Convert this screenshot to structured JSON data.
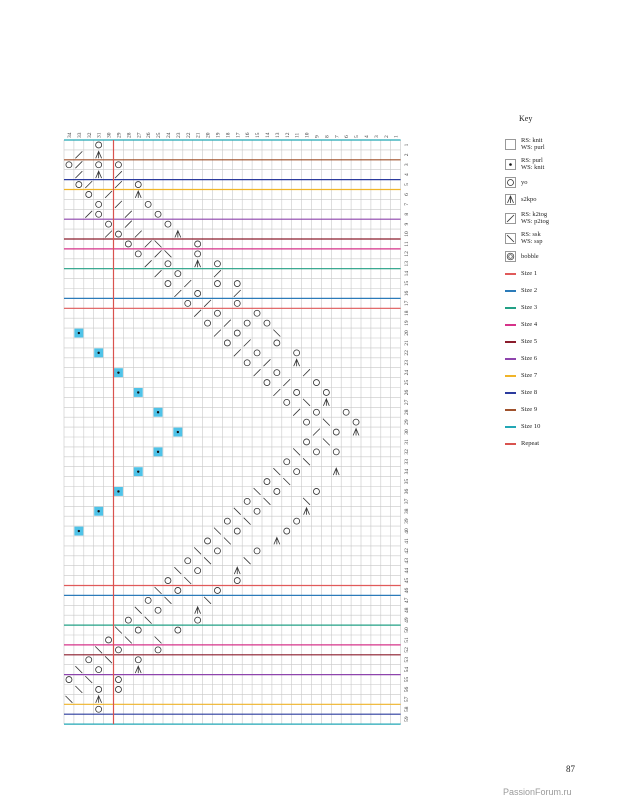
{
  "chart": {
    "columns": 34,
    "rows": 59,
    "repeat_line_after_col": 29,
    "size_lines": [
      {
        "row_boundary": 0,
        "color": "#22a7b5"
      },
      {
        "row_boundary": 2,
        "color": "#a0522d"
      },
      {
        "row_boundary": 4,
        "color": "#2b3b9e"
      },
      {
        "row_boundary": 5,
        "color": "#f0b429"
      },
      {
        "row_boundary": 8,
        "color": "#8e44ad"
      },
      {
        "row_boundary": 10,
        "color": "#8b1c2c"
      },
      {
        "row_boundary": 11,
        "color": "#d6338a"
      },
      {
        "row_boundary": 13,
        "color": "#22a085"
      },
      {
        "row_boundary": 16,
        "color": "#2b7bb9"
      },
      {
        "row_boundary": 17,
        "color": "#e05a5a"
      },
      {
        "row_boundary": 45,
        "color": "#e05a5a"
      },
      {
        "row_boundary": 46,
        "color": "#2b7bb9"
      },
      {
        "row_boundary": 49,
        "color": "#22a085"
      },
      {
        "row_boundary": 51,
        "color": "#d6338a"
      },
      {
        "row_boundary": 52,
        "color": "#8b1c2c"
      },
      {
        "row_boundary": 54,
        "color": "#8e44ad"
      },
      {
        "row_boundary": 57,
        "color": "#f0b429"
      },
      {
        "row_boundary": 58,
        "color": "#2b3b9e"
      },
      {
        "row_boundary": 59,
        "color": "#22a7b5"
      }
    ],
    "bobbles": [
      [
        20,
        33
      ],
      [
        22,
        31
      ],
      [
        24,
        29
      ],
      [
        26,
        27
      ],
      [
        28,
        25
      ],
      [
        30,
        23
      ],
      [
        32,
        25
      ],
      [
        34,
        27
      ],
      [
        36,
        29
      ],
      [
        38,
        31
      ],
      [
        40,
        33
      ]
    ],
    "marks": [
      [
        1,
        31,
        "o"
      ],
      [
        2,
        33,
        "/"
      ],
      [
        2,
        31,
        "y"
      ],
      [
        3,
        34,
        "o"
      ],
      [
        3,
        33,
        "/"
      ],
      [
        3,
        31,
        "o"
      ],
      [
        3,
        29,
        "o"
      ],
      [
        4,
        33,
        "/"
      ],
      [
        4,
        31,
        "y"
      ],
      [
        4,
        29,
        "/"
      ],
      [
        5,
        33,
        "o"
      ],
      [
        5,
        32,
        "/"
      ],
      [
        5,
        29,
        "/"
      ],
      [
        5,
        27,
        "o"
      ],
      [
        6,
        32,
        "o"
      ],
      [
        6,
        30,
        "/"
      ],
      [
        6,
        27,
        "y"
      ],
      [
        7,
        31,
        "o"
      ],
      [
        7,
        29,
        "/"
      ],
      [
        7,
        26,
        "o"
      ],
      [
        8,
        32,
        "/"
      ],
      [
        8,
        31,
        "o"
      ],
      [
        8,
        28,
        "/"
      ],
      [
        8,
        25,
        "o"
      ],
      [
        9,
        30,
        "o"
      ],
      [
        9,
        28,
        "/"
      ],
      [
        9,
        24,
        "o"
      ],
      [
        10,
        30,
        "/"
      ],
      [
        10,
        29,
        "o"
      ],
      [
        10,
        27,
        "/"
      ],
      [
        10,
        23,
        "y"
      ],
      [
        11,
        28,
        "o"
      ],
      [
        11,
        26,
        "/"
      ],
      [
        11,
        25,
        "\\"
      ],
      [
        11,
        21,
        "o"
      ],
      [
        12,
        27,
        "o"
      ],
      [
        12,
        25,
        "/"
      ],
      [
        12,
        24,
        "\\"
      ],
      [
        12,
        21,
        "o"
      ],
      [
        13,
        26,
        "/"
      ],
      [
        13,
        24,
        "o"
      ],
      [
        13,
        21,
        "y"
      ],
      [
        13,
        19,
        "o"
      ],
      [
        14,
        25,
        "/"
      ],
      [
        14,
        23,
        "o"
      ],
      [
        14,
        19,
        "/"
      ],
      [
        15,
        24,
        "o"
      ],
      [
        15,
        22,
        "/"
      ],
      [
        15,
        19,
        "o"
      ],
      [
        15,
        17,
        "o"
      ],
      [
        16,
        23,
        "/"
      ],
      [
        16,
        21,
        "o"
      ],
      [
        16,
        17,
        "/"
      ],
      [
        17,
        22,
        "o"
      ],
      [
        17,
        20,
        "/"
      ],
      [
        17,
        17,
        "o"
      ],
      [
        18,
        21,
        "/"
      ],
      [
        18,
        19,
        "o"
      ],
      [
        18,
        15,
        "o"
      ],
      [
        19,
        20,
        "o"
      ],
      [
        19,
        18,
        "/"
      ],
      [
        19,
        16,
        "o"
      ],
      [
        19,
        14,
        "o"
      ],
      [
        20,
        19,
        "/"
      ],
      [
        20,
        17,
        "o"
      ],
      [
        20,
        13,
        "\\"
      ],
      [
        21,
        18,
        "o"
      ],
      [
        21,
        16,
        "/"
      ],
      [
        21,
        13,
        "o"
      ],
      [
        22,
        17,
        "/"
      ],
      [
        22,
        15,
        "o"
      ],
      [
        22,
        11,
        "o"
      ],
      [
        23,
        16,
        "o"
      ],
      [
        23,
        14,
        "/"
      ],
      [
        23,
        11,
        "y"
      ],
      [
        24,
        15,
        "/"
      ],
      [
        24,
        13,
        "o"
      ],
      [
        24,
        10,
        "/"
      ],
      [
        25,
        14,
        "o"
      ],
      [
        25,
        12,
        "/"
      ],
      [
        25,
        9,
        "o"
      ],
      [
        26,
        13,
        "/"
      ],
      [
        26,
        11,
        "o"
      ],
      [
        26,
        8,
        "o"
      ],
      [
        27,
        12,
        "o"
      ],
      [
        27,
        10,
        "\\"
      ],
      [
        27,
        8,
        "y"
      ],
      [
        28,
        11,
        "/"
      ],
      [
        28,
        9,
        "o"
      ],
      [
        28,
        6,
        "o"
      ],
      [
        29,
        10,
        "o"
      ],
      [
        29,
        8,
        "\\"
      ],
      [
        29,
        5,
        "o"
      ],
      [
        30,
        9,
        "/"
      ],
      [
        30,
        7,
        "o"
      ],
      [
        30,
        5,
        "y"
      ],
      [
        31,
        10,
        "o"
      ],
      [
        31,
        8,
        "\\"
      ],
      [
        32,
        11,
        "\\"
      ],
      [
        32,
        9,
        "o"
      ],
      [
        32,
        7,
        "o"
      ],
      [
        33,
        12,
        "o"
      ],
      [
        33,
        10,
        "\\"
      ],
      [
        34,
        13,
        "\\"
      ],
      [
        34,
        11,
        "o"
      ],
      [
        34,
        7,
        "y"
      ],
      [
        35,
        14,
        "o"
      ],
      [
        35,
        12,
        "\\"
      ],
      [
        36,
        15,
        "\\"
      ],
      [
        36,
        13,
        "o"
      ],
      [
        36,
        9,
        "o"
      ],
      [
        37,
        16,
        "o"
      ],
      [
        37,
        14,
        "\\"
      ],
      [
        37,
        10,
        "\\"
      ],
      [
        38,
        17,
        "\\"
      ],
      [
        38,
        15,
        "o"
      ],
      [
        38,
        10,
        "y"
      ],
      [
        39,
        18,
        "o"
      ],
      [
        39,
        16,
        "\\"
      ],
      [
        39,
        11,
        "o"
      ],
      [
        40,
        19,
        "\\"
      ],
      [
        40,
        17,
        "o"
      ],
      [
        40,
        12,
        "o"
      ],
      [
        41,
        20,
        "o"
      ],
      [
        41,
        18,
        "\\"
      ],
      [
        41,
        13,
        "y"
      ],
      [
        42,
        21,
        "\\"
      ],
      [
        42,
        19,
        "o"
      ],
      [
        42,
        15,
        "o"
      ],
      [
        43,
        22,
        "o"
      ],
      [
        43,
        20,
        "\\"
      ],
      [
        43,
        16,
        "\\"
      ],
      [
        44,
        23,
        "\\"
      ],
      [
        44,
        21,
        "o"
      ],
      [
        44,
        17,
        "y"
      ],
      [
        45,
        24,
        "o"
      ],
      [
        45,
        22,
        "\\"
      ],
      [
        45,
        17,
        "o"
      ],
      [
        46,
        25,
        "\\"
      ],
      [
        46,
        23,
        "o"
      ],
      [
        46,
        19,
        "o"
      ],
      [
        47,
        26,
        "o"
      ],
      [
        47,
        24,
        "\\"
      ],
      [
        47,
        20,
        "\\"
      ],
      [
        48,
        27,
        "\\"
      ],
      [
        48,
        25,
        "o"
      ],
      [
        48,
        21,
        "y"
      ],
      [
        49,
        28,
        "o"
      ],
      [
        49,
        26,
        "\\"
      ],
      [
        49,
        21,
        "o"
      ],
      [
        50,
        29,
        "\\"
      ],
      [
        50,
        27,
        "o"
      ],
      [
        50,
        23,
        "o"
      ],
      [
        51,
        30,
        "o"
      ],
      [
        51,
        28,
        "\\"
      ],
      [
        51,
        25,
        "\\"
      ],
      [
        52,
        31,
        "\\"
      ],
      [
        52,
        29,
        "o"
      ],
      [
        52,
        25,
        "o"
      ],
      [
        53,
        32,
        "o"
      ],
      [
        53,
        30,
        "\\"
      ],
      [
        53,
        27,
        "o"
      ],
      [
        54,
        33,
        "\\"
      ],
      [
        54,
        31,
        "o"
      ],
      [
        54,
        27,
        "y"
      ],
      [
        55,
        34,
        "o"
      ],
      [
        55,
        32,
        "\\"
      ],
      [
        55,
        29,
        "o"
      ],
      [
        56,
        33,
        "\\"
      ],
      [
        56,
        31,
        "o"
      ],
      [
        56,
        29,
        "o"
      ],
      [
        57,
        34,
        "\\"
      ],
      [
        57,
        31,
        "y"
      ],
      [
        58,
        31,
        "o"
      ]
    ],
    "colors": {
      "grid": "#c8c8c8",
      "ink": "#333333",
      "bobble": "#4fc3e8",
      "repeat": "#d9534f"
    }
  },
  "key": {
    "title": "Key",
    "items": [
      {
        "type": "box",
        "sym": "blank",
        "label": "RS: knit\nWS: purl"
      },
      {
        "type": "box",
        "sym": "dot",
        "label": "RS: purl\nWS: knit"
      },
      {
        "type": "box",
        "sym": "o",
        "label": "yo"
      },
      {
        "type": "box",
        "sym": "y",
        "label": "s2kpo"
      },
      {
        "type": "box",
        "sym": "/",
        "label": "RS: k2tog\nWS: p2tog"
      },
      {
        "type": "box",
        "sym": "\\",
        "label": "RS: ssk\nWS: ssp"
      },
      {
        "type": "box",
        "sym": "bobble",
        "label": "bobble"
      },
      {
        "type": "line",
        "color": "#e05a5a",
        "label": "Size 1"
      },
      {
        "type": "line",
        "color": "#2b7bb9",
        "label": "Size 2"
      },
      {
        "type": "line",
        "color": "#22a085",
        "label": "Size 3"
      },
      {
        "type": "line",
        "color": "#d6338a",
        "label": "Size 4"
      },
      {
        "type": "line",
        "color": "#8b1c2c",
        "label": "Size 5"
      },
      {
        "type": "line",
        "color": "#8e44ad",
        "label": "Size 6"
      },
      {
        "type": "line",
        "color": "#f0b429",
        "label": "Size 7"
      },
      {
        "type": "line",
        "color": "#2b3b9e",
        "label": "Size 8"
      },
      {
        "type": "line",
        "color": "#a0522d",
        "label": "Size 9"
      },
      {
        "type": "line",
        "color": "#22a7b5",
        "label": "Size 10"
      },
      {
        "type": "line",
        "color": "#d9534f",
        "label": "Repeat"
      }
    ]
  },
  "page_number": "87",
  "watermark": "PassionForum.ru"
}
